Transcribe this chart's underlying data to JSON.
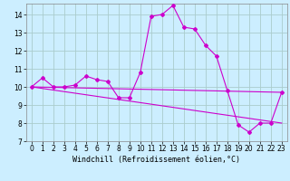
{
  "xlabel": "Windchill (Refroidissement éolien,°C)",
  "bg_color": "#cceeff",
  "grid_color": "#aacccc",
  "line_color": "#cc00cc",
  "xlim": [
    -0.5,
    23.5
  ],
  "ylim": [
    7,
    14.6
  ],
  "xticks": [
    0,
    1,
    2,
    3,
    4,
    5,
    6,
    7,
    8,
    9,
    10,
    11,
    12,
    13,
    14,
    15,
    16,
    17,
    18,
    19,
    20,
    21,
    22,
    23
  ],
  "yticks": [
    7,
    8,
    9,
    10,
    11,
    12,
    13,
    14
  ],
  "line1_x": [
    0,
    1,
    2,
    3,
    4,
    5,
    6,
    7,
    8,
    9,
    10,
    11,
    12,
    13,
    14,
    15,
    16,
    17,
    18,
    19,
    20,
    21,
    22,
    23
  ],
  "line1_y": [
    10.0,
    10.5,
    10.0,
    10.0,
    10.1,
    10.6,
    10.4,
    10.3,
    9.4,
    9.4,
    10.8,
    13.9,
    14.0,
    14.5,
    13.3,
    13.2,
    12.3,
    11.7,
    9.8,
    7.9,
    7.5,
    8.0,
    8.0,
    9.7
  ],
  "line2_x": [
    0,
    23
  ],
  "line2_y": [
    10.0,
    9.7
  ],
  "line3_x": [
    0,
    23
  ],
  "line3_y": [
    10.0,
    8.0
  ],
  "xlabel_fontsize": 6,
  "tick_fontsize": 5.5
}
